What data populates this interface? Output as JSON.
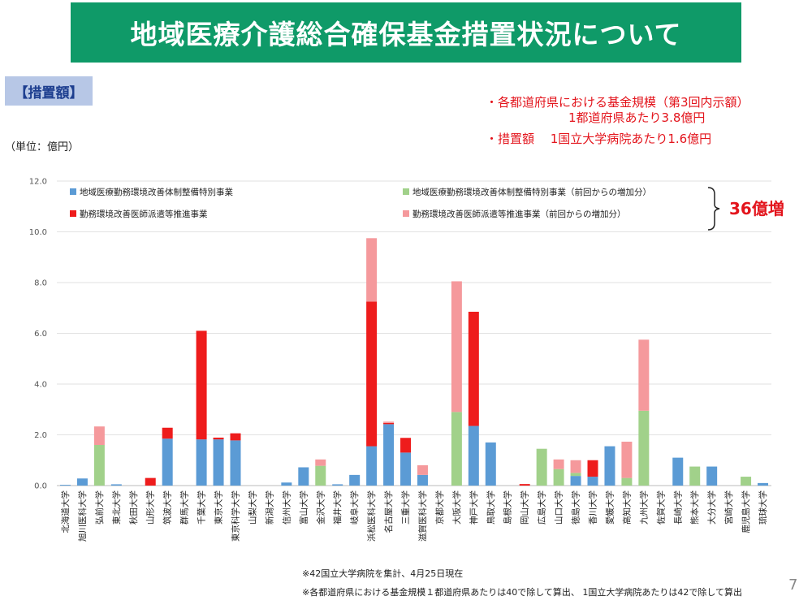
{
  "title": "地域医療介護総合確保基金措置状況について",
  "section_tag": "【措置額】",
  "unit_label": "（単位：億円）",
  "notes": {
    "line1": "・各都道府県における基金規模（第3回内示額）",
    "line2": "1都道府県あたり3.8億円",
    "line3": "・措置額　 1国立大学病院あたり1.6億円"
  },
  "increase_label": "36億増",
  "footnotes": [
    "※42国立大学病院を集計、4月25日現在",
    "※各都道府県における基金規模１都道府県あたりは40で除して算出、 1国立大学病院あたりは42で除して算出"
  ],
  "page_number": "7",
  "colors": {
    "title_bg": "#0f9a68",
    "blue": "#5b9bd5",
    "red": "#ee1c1c",
    "green": "#a1d18a",
    "pink": "#f5999c",
    "accent_red": "#e3141c"
  },
  "chart_data": {
    "type": "bar",
    "stacked": true,
    "ylim": [
      0,
      12
    ],
    "yticks": [
      "0.0",
      "2.0",
      "4.0",
      "6.0",
      "8.0",
      "10.0",
      "12.0"
    ],
    "grid": true,
    "legend_position": "top",
    "categories": [
      "北海道大学",
      "旭川医科大学",
      "弘前大学",
      "東北大学",
      "秋田大学",
      "山形大学",
      "筑波大学",
      "群馬大学",
      "千葉大学",
      "東京大学",
      "東京科学大学",
      "山梨大学",
      "新潟大学",
      "信州大学",
      "富山大学",
      "金沢大学",
      "福井大学",
      "岐阜大学",
      "浜松医科大学",
      "名古屋大学",
      "三重大学",
      "滋賀医科大学",
      "京都大学",
      "大阪大学",
      "神戸大学",
      "鳥取大学",
      "島根大学",
      "岡山大学",
      "広島大学",
      "山口大学",
      "徳島大学",
      "香川大学",
      "愛媛大学",
      "高知大学",
      "九州大学",
      "佐賀大学",
      "長崎大学",
      "熊本大学",
      "大分大学",
      "宮崎大学",
      "鹿児島大学",
      "琉球大学"
    ],
    "series": [
      {
        "name": "地域医療勤務環境改善体制整備特別事業",
        "color": "#5b9bd5",
        "values": [
          0.03,
          0.28,
          0,
          0.05,
          0,
          0,
          1.85,
          0,
          1.82,
          1.82,
          1.78,
          0,
          0,
          0.12,
          0.72,
          0,
          0.05,
          0.42,
          1.55,
          2.42,
          1.3,
          0.42,
          0,
          0,
          2.35,
          1.7,
          0,
          0,
          0,
          0,
          0.38,
          0.35,
          1.55,
          0,
          0,
          0,
          1.1,
          0,
          0.75,
          0,
          0,
          0.1
        ]
      },
      {
        "name": "勤務環境改善医師派遣等推進事業",
        "color": "#ee1c1c",
        "values": [
          0,
          0,
          0,
          0,
          0,
          0.3,
          0.43,
          0,
          4.28,
          0.07,
          0.28,
          0,
          0,
          0,
          0,
          0,
          0,
          0,
          5.7,
          0.05,
          0.58,
          0,
          0,
          0,
          4.5,
          0,
          0,
          0.06,
          0,
          0,
          0,
          0.65,
          0,
          0,
          0,
          0,
          0,
          0,
          0,
          0,
          0,
          0
        ]
      },
      {
        "name": "地域医療勤務環境改善体制整備特別事業（前回からの増加分）",
        "color": "#a1d18a",
        "values": [
          0,
          0,
          1.6,
          0,
          0,
          0,
          0,
          0,
          0,
          0,
          0,
          0,
          0,
          0,
          0,
          0.78,
          0,
          0,
          0,
          0,
          0,
          0,
          0,
          2.9,
          0,
          0,
          0,
          0,
          1.45,
          0.65,
          0.12,
          0,
          0,
          0.3,
          2.95,
          0,
          0,
          0.75,
          0,
          0,
          0.35,
          0
        ]
      },
      {
        "name": "勤務環境改善医師派遣等推進事業（前回からの増加分）",
        "color": "#f5999c",
        "values": [
          0,
          0,
          0.73,
          0,
          0,
          0,
          0,
          0,
          0,
          0,
          0,
          0,
          0,
          0,
          0,
          0.25,
          0,
          0,
          2.5,
          0.05,
          0,
          0.38,
          0,
          5.15,
          0,
          0,
          0,
          0,
          0,
          0.38,
          0.5,
          0,
          0,
          1.43,
          2.8,
          0,
          0,
          0,
          0,
          0,
          0,
          0
        ]
      }
    ]
  }
}
